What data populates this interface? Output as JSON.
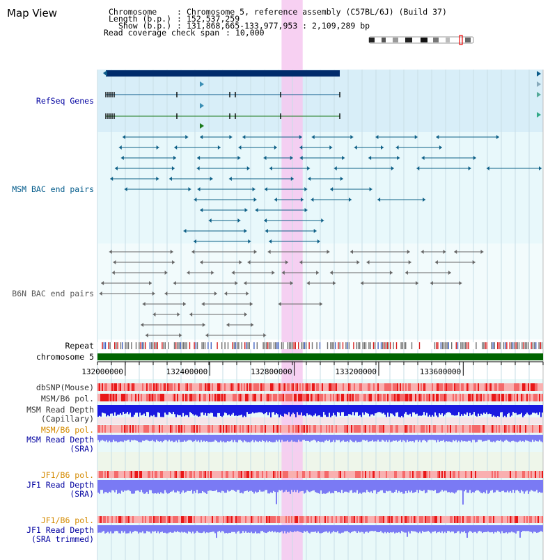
{
  "title": "Map View",
  "info": {
    "chromosome_label": "Chromosome",
    "chromosome_value": "Chromosome 5, reference assembly (C57BL/6J) (Build 37)",
    "length_label": "Length (b.p.)",
    "length_value": "152,537,259",
    "show_label": "Show (b.p.)",
    "show_value": "131,868,665-133,977,953 : 2,109,289 bp",
    "coverage_label": "Read coverage check span",
    "coverage_value": "10,000"
  },
  "tracks": {
    "refseq": "RefSeq Genes",
    "msm_bac": "MSM BAC end pairs",
    "b6n_bac": "B6N BAC end pairs",
    "repeat": "Repeat",
    "chromosome": "chromosome 5",
    "dbsnp": "dbSNP(Mouse)",
    "msm_b6_pol_1": "MSM/B6 pol.",
    "msm_read_depth_cap_1": "MSM Read Depth",
    "msm_read_depth_cap_2": "(Capillary)",
    "msm_b6_pol_2": "MSM/B6 pol.",
    "msm_read_depth_sra_1": "MSM Read Depth",
    "msm_read_depth_sra_2": "(SRA)",
    "jf1_b6_pol_1": "JF1/B6 pol.",
    "jf1_read_depth_sra_1": "JF1 Read Depth",
    "jf1_read_depth_sra_2": "(SRA)",
    "jf1_b6_pol_2": "JF1/B6 pol.",
    "jf1_read_depth_trim_1": "JF1 Read Depth",
    "jf1_read_depth_trim_2": "(SRA trimmed)"
  },
  "axis": {
    "start_bp": 131868665,
    "end_bp": 133977953,
    "ticks": [
      "132000000",
      "132400000",
      "132800000",
      "133200000",
      "133600000"
    ]
  },
  "highlight_region": {
    "start_bp": 132740000,
    "end_bp": 132840000
  },
  "colors": {
    "refseq_dark": "#002b6b",
    "refseq_line": "#0b5b8a",
    "gene_green": "#1a7a1a",
    "msm_bac": "#0d5f86",
    "b6n_bac": "#666666",
    "chrom_bar": "#006400",
    "highlight": "#f6c8f0",
    "msm_depth": "#1a1ae0",
    "sra_depth": "#7a7af4",
    "label_orange": "#d48a00",
    "label_blue": "#0000a0"
  }
}
